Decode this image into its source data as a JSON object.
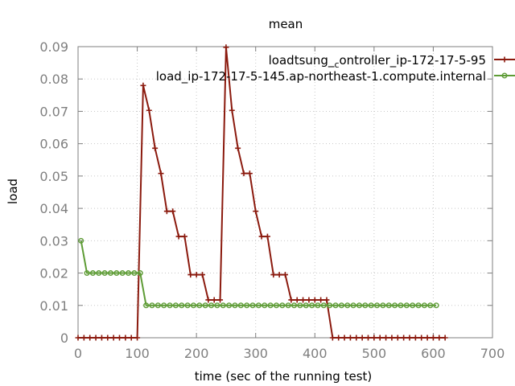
{
  "chart_data": {
    "type": "line",
    "title": "mean",
    "xlabel": "time (sec of the running test)",
    "ylabel": "load",
    "xlim": [
      0,
      700
    ],
    "ylim": [
      0,
      0.09
    ],
    "xticks": [
      "0",
      "100",
      "200",
      "300",
      "400",
      "500",
      "600",
      "700"
    ],
    "yticks": [
      "0",
      "0.01",
      "0.02",
      "0.03",
      "0.04",
      "0.05",
      "0.06",
      "0.07",
      "0.08",
      "0.09"
    ],
    "grid": true,
    "legend_position": "top-right",
    "series": [
      {
        "name_parts": [
          "load",
          "tsung",
          "c",
          "ontroller",
          "ip-172-17-5-95"
        ],
        "color": "#8b1a0e",
        "marker": "plus",
        "points": [
          [
            0,
            0
          ],
          [
            10,
            0
          ],
          [
            20,
            0
          ],
          [
            30,
            0
          ],
          [
            40,
            0
          ],
          [
            50,
            0
          ],
          [
            60,
            0
          ],
          [
            70,
            0
          ],
          [
            80,
            0
          ],
          [
            90,
            0
          ],
          [
            100,
            0
          ],
          [
            110,
            0.078
          ],
          [
            120,
            0.0703
          ],
          [
            130,
            0.0586
          ],
          [
            140,
            0.0508
          ],
          [
            150,
            0.0391
          ],
          [
            160,
            0.0391
          ],
          [
            170,
            0.0313
          ],
          [
            180,
            0.0313
          ],
          [
            190,
            0.0195
          ],
          [
            200,
            0.0195
          ],
          [
            210,
            0.0195
          ],
          [
            220,
            0.0117
          ],
          [
            230,
            0.0117
          ],
          [
            240,
            0.0117
          ],
          [
            250,
            0.0898
          ],
          [
            260,
            0.0703
          ],
          [
            270,
            0.0586
          ],
          [
            280,
            0.0508
          ],
          [
            290,
            0.0508
          ],
          [
            300,
            0.0391
          ],
          [
            310,
            0.0313
          ],
          [
            320,
            0.0313
          ],
          [
            330,
            0.0195
          ],
          [
            340,
            0.0195
          ],
          [
            350,
            0.0195
          ],
          [
            360,
            0.0117
          ],
          [
            370,
            0.0117
          ],
          [
            380,
            0.0117
          ],
          [
            390,
            0.0117
          ],
          [
            400,
            0.0117
          ],
          [
            410,
            0.0117
          ],
          [
            420,
            0.0117
          ],
          [
            430,
            0
          ],
          [
            440,
            0
          ],
          [
            450,
            0
          ],
          [
            460,
            0
          ],
          [
            470,
            0
          ],
          [
            480,
            0
          ],
          [
            490,
            0
          ],
          [
            500,
            0
          ],
          [
            510,
            0
          ],
          [
            520,
            0
          ],
          [
            530,
            0
          ],
          [
            540,
            0
          ],
          [
            550,
            0
          ],
          [
            560,
            0
          ],
          [
            570,
            0
          ],
          [
            580,
            0
          ],
          [
            590,
            0
          ],
          [
            600,
            0
          ],
          [
            610,
            0
          ],
          [
            620,
            0
          ]
        ]
      },
      {
        "name_parts": [
          "load",
          "ip-172-17-5-145.ap-northeast-1.compute.internal"
        ],
        "color": "#5e9c36",
        "marker": "circle",
        "points": [
          [
            5,
            0.03
          ],
          [
            15,
            0.02
          ],
          [
            25,
            0.02
          ],
          [
            35,
            0.02
          ],
          [
            45,
            0.02
          ],
          [
            55,
            0.02
          ],
          [
            65,
            0.02
          ],
          [
            75,
            0.02
          ],
          [
            85,
            0.02
          ],
          [
            95,
            0.02
          ],
          [
            105,
            0.02
          ],
          [
            115,
            0.01
          ],
          [
            125,
            0.01
          ],
          [
            135,
            0.01
          ],
          [
            145,
            0.01
          ],
          [
            155,
            0.01
          ],
          [
            165,
            0.01
          ],
          [
            175,
            0.01
          ],
          [
            185,
            0.01
          ],
          [
            195,
            0.01
          ],
          [
            205,
            0.01
          ],
          [
            215,
            0.01
          ],
          [
            225,
            0.01
          ],
          [
            235,
            0.01
          ],
          [
            245,
            0.01
          ],
          [
            255,
            0.01
          ],
          [
            265,
            0.01
          ],
          [
            275,
            0.01
          ],
          [
            285,
            0.01
          ],
          [
            295,
            0.01
          ],
          [
            305,
            0.01
          ],
          [
            315,
            0.01
          ],
          [
            325,
            0.01
          ],
          [
            335,
            0.01
          ],
          [
            345,
            0.01
          ],
          [
            355,
            0.01
          ],
          [
            365,
            0.01
          ],
          [
            375,
            0.01
          ],
          [
            385,
            0.01
          ],
          [
            395,
            0.01
          ],
          [
            405,
            0.01
          ],
          [
            415,
            0.01
          ],
          [
            425,
            0.01
          ],
          [
            435,
            0.01
          ],
          [
            445,
            0.01
          ],
          [
            455,
            0.01
          ],
          [
            465,
            0.01
          ],
          [
            475,
            0.01
          ],
          [
            485,
            0.01
          ],
          [
            495,
            0.01
          ],
          [
            505,
            0.01
          ],
          [
            515,
            0.01
          ],
          [
            525,
            0.01
          ],
          [
            535,
            0.01
          ],
          [
            545,
            0.01
          ],
          [
            555,
            0.01
          ],
          [
            565,
            0.01
          ],
          [
            575,
            0.01
          ],
          [
            585,
            0.01
          ],
          [
            595,
            0.01
          ],
          [
            605,
            0.01
          ]
        ]
      }
    ]
  }
}
